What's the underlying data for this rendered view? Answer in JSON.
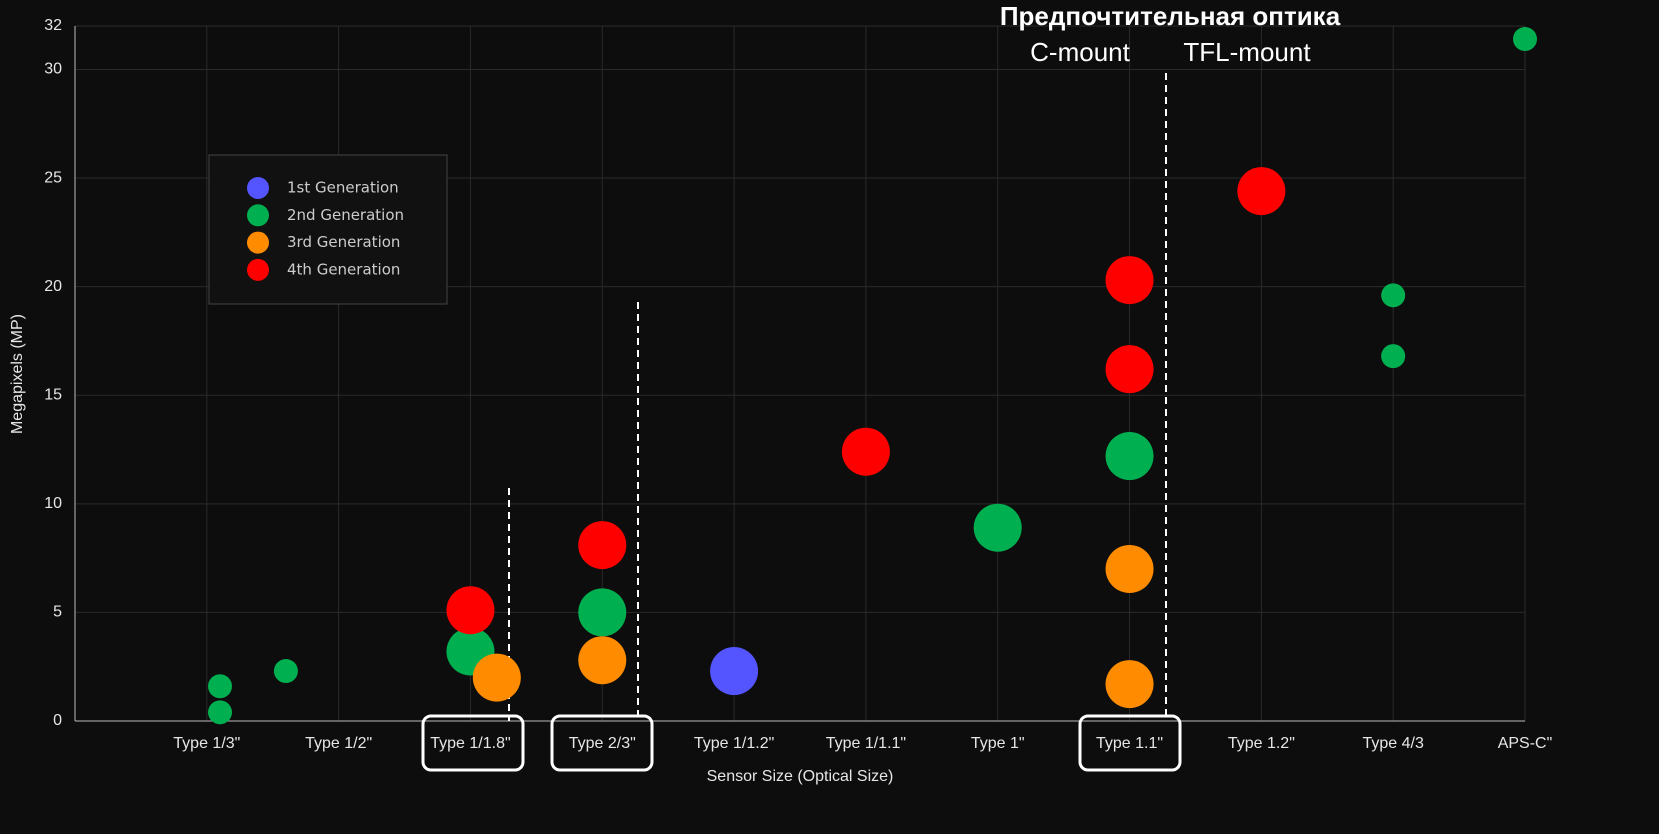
{
  "chart_data": {
    "type": "scatter",
    "xlabel": "Sensor Size (Optical Size)",
    "ylabel": "Megapixels (MP)",
    "annotations": [
      "Предпочтительная оптика",
      "C-mount",
      "TFL-mount"
    ],
    "xlim": [
      -1,
      10
    ],
    "xticks": [
      {
        "value": 0,
        "label": "Type 1/3\""
      },
      {
        "value": 1,
        "label": "Type 1/2\""
      },
      {
        "value": 2,
        "label": "Type 1/1.8\""
      },
      {
        "value": 3,
        "label": "Type 2/3\""
      },
      {
        "value": 4,
        "label": "Type 1/1.2\""
      },
      {
        "value": 5,
        "label": "Type 1/1.1\""
      },
      {
        "value": 6,
        "label": "Type 1\""
      },
      {
        "value": 7,
        "label": "Type 1.1\""
      },
      {
        "value": 8,
        "label": "Type 1.2\""
      },
      {
        "value": 9,
        "label": "Type 4/3"
      },
      {
        "value": 10,
        "label": "APS-C\""
      }
    ],
    "ylim": [
      0,
      32
    ],
    "yticks": [
      0,
      5,
      10,
      15,
      20,
      25,
      30,
      32
    ],
    "grid": true,
    "legend": "upper left",
    "series": [
      {
        "name": "1st Generation",
        "color": "#5555ff",
        "x": [
          4
        ],
        "values": [
          2.3
        ],
        "sizes": [
          2
        ]
      },
      {
        "name": "2nd Generation",
        "color": "#00b050",
        "x": [
          0.1,
          0.1,
          0.6,
          2,
          3,
          6,
          7,
          9,
          9,
          10
        ],
        "values": [
          1.6,
          0.4,
          2.3,
          3.2,
          5.0,
          8.9,
          12.2,
          19.6,
          16.8,
          31.4
        ],
        "sizes": [
          1,
          1,
          1,
          2,
          2,
          2,
          2,
          1,
          1,
          1
        ]
      },
      {
        "name": "3rd Generation",
        "color": "#ff8c00",
        "x": [
          2.2,
          3,
          7,
          7
        ],
        "values": [
          2.0,
          2.8,
          7.0,
          1.7
        ],
        "sizes": [
          2,
          2,
          2,
          2
        ]
      },
      {
        "name": "4th Generation",
        "color": "#ff0000",
        "x": [
          2,
          3,
          5,
          7,
          7,
          8
        ],
        "values": [
          5.1,
          8.1,
          12.4,
          20.3,
          16.2,
          24.4
        ],
        "sizes": [
          2,
          2,
          2,
          2,
          2,
          2
        ]
      }
    ]
  }
}
